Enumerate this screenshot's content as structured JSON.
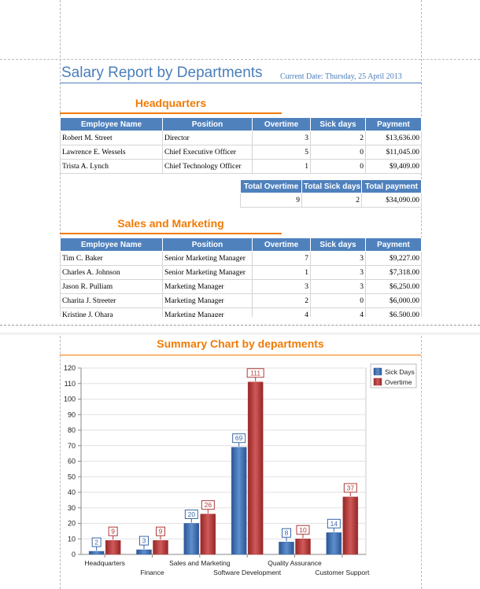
{
  "report": {
    "title": "Salary Report by Departments",
    "current_date": "Current Date:  Thursday, 25 April 2013"
  },
  "columns": [
    "Employee Name",
    "Position",
    "Overtime",
    "Sick days",
    "Payment"
  ],
  "totals_columns": [
    "Total Overtime",
    "Total Sick days",
    "Total payment"
  ],
  "groups": [
    {
      "name": "Headquarters",
      "rows": [
        [
          "Robert M. Street",
          "Director",
          "3",
          "2",
          "$13,636.00"
        ],
        [
          "Lawrence E. Wessels",
          "Chief Executive Officer",
          "5",
          "0",
          "$11,045.00"
        ],
        [
          "Trista A. Lynch",
          "Chief Technology Officer",
          "1",
          "0",
          "$9,409.00"
        ]
      ],
      "totals": [
        "9",
        "2",
        "$34,090.00"
      ]
    },
    {
      "name": "Sales and Marketing",
      "rows": [
        [
          "Tim C. Baker",
          "Senior Marketing Manager",
          "7",
          "3",
          "$9,227.00"
        ],
        [
          "Charles A. Johnson",
          "Senior Marketing Manager",
          "1",
          "3",
          "$7,318.00"
        ],
        [
          "Jason R. Pulliam",
          "Marketing Manager",
          "3",
          "3",
          "$6,250.00"
        ],
        [
          "Charita J. Streeter",
          "Marketing Manager",
          "2",
          "0",
          "$6,000.00"
        ],
        [
          "Kristine J. Ohara",
          "Marketing Manager",
          "4",
          "4",
          "$6,500.00"
        ]
      ]
    }
  ],
  "colors": {
    "header_blue": "#4f81bd",
    "accent_orange": "#f07b05",
    "title_blue": "#4a7ebb",
    "series_sick": "#3a67a8",
    "series_overtime": "#b23a3a"
  },
  "chart_data": {
    "type": "bar",
    "title": "Summary Chart by departments",
    "categories": [
      "Headquarters",
      "Finance",
      "Sales and Marketing",
      "Software Development",
      "Quality Assurance",
      "Customer Support"
    ],
    "series": [
      {
        "name": "Sick Days",
        "values": [
          2,
          3,
          20,
          69,
          8,
          14
        ]
      },
      {
        "name": "Overtime",
        "values": [
          9,
          9,
          26,
          111,
          10,
          37
        ]
      }
    ],
    "ylim": [
      0,
      120
    ],
    "yticks": [
      0,
      10,
      20,
      30,
      40,
      50,
      60,
      70,
      80,
      90,
      100,
      110,
      120
    ],
    "grid": true,
    "legend": "top-right",
    "data_labels": true
  }
}
